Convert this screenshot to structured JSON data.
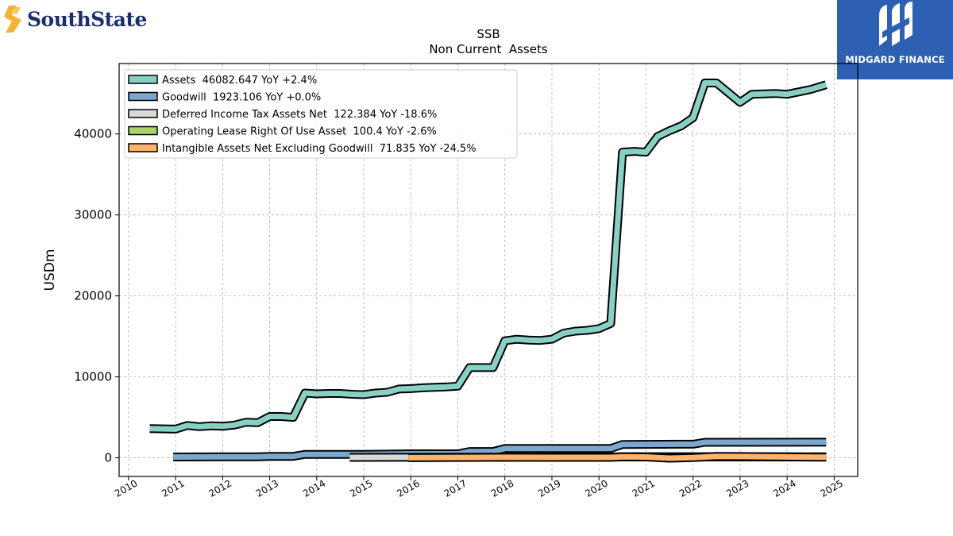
{
  "header": {
    "left_logo_text": "SouthState",
    "left_logo_icon": "southstate-s-icon",
    "right_logo_text": "MIDGARD FINANCE",
    "right_logo_icon": "midgard-m-icon"
  },
  "colors": {
    "assets": "#88d0c4",
    "goodwill": "#7ba7cf",
    "deferred": "#d9d9d9",
    "lease": "#a9d46a",
    "intangible": "#fcb36b",
    "left_logo_accent": "#f5b335",
    "left_logo_text": "#1b2f6b",
    "right_logo_bg": "#2d5fb2"
  },
  "chart_data": {
    "type": "line",
    "title": "SSB",
    "subtitle": "Non Current  Assets",
    "ylabel": "USDm",
    "xlabel": "",
    "xlim": [
      2009.8,
      2025.5
    ],
    "ylim": [
      -2300,
      48700
    ],
    "x_ticks": [
      2010,
      2011,
      2012,
      2013,
      2014,
      2015,
      2016,
      2017,
      2018,
      2019,
      2020,
      2021,
      2022,
      2023,
      2024,
      2025
    ],
    "y_ticks": [
      0,
      10000,
      20000,
      30000,
      40000
    ],
    "grid": true,
    "legend_position": "top-left",
    "series": [
      {
        "name": "Assets",
        "legend": "Assets  46082.647 YoY +2.4%",
        "color_key": "assets",
        "points": [
          [
            2010.45,
            3600
          ],
          [
            2011.0,
            3550
          ],
          [
            2011.25,
            4000
          ],
          [
            2011.5,
            3850
          ],
          [
            2011.75,
            3950
          ],
          [
            2012.0,
            3900
          ],
          [
            2012.25,
            4050
          ],
          [
            2012.5,
            4400
          ],
          [
            2012.75,
            4350
          ],
          [
            2013.0,
            5100
          ],
          [
            2013.25,
            5100
          ],
          [
            2013.5,
            5000
          ],
          [
            2013.75,
            8000
          ],
          [
            2014.0,
            7900
          ],
          [
            2014.25,
            7950
          ],
          [
            2014.5,
            7950
          ],
          [
            2014.75,
            7850
          ],
          [
            2015.0,
            7800
          ],
          [
            2015.25,
            8000
          ],
          [
            2015.5,
            8100
          ],
          [
            2015.75,
            8500
          ],
          [
            2016.0,
            8550
          ],
          [
            2016.25,
            8650
          ],
          [
            2016.5,
            8700
          ],
          [
            2016.75,
            8750
          ],
          [
            2017.0,
            8850
          ],
          [
            2017.25,
            11150
          ],
          [
            2017.5,
            11150
          ],
          [
            2017.75,
            11150
          ],
          [
            2018.0,
            14450
          ],
          [
            2018.25,
            14650
          ],
          [
            2018.5,
            14550
          ],
          [
            2018.75,
            14500
          ],
          [
            2019.0,
            14650
          ],
          [
            2019.25,
            15400
          ],
          [
            2019.5,
            15650
          ],
          [
            2019.75,
            15750
          ],
          [
            2020.0,
            15950
          ],
          [
            2020.25,
            16600
          ],
          [
            2020.5,
            37750
          ],
          [
            2020.75,
            37850
          ],
          [
            2021.0,
            37750
          ],
          [
            2021.25,
            39700
          ],
          [
            2021.5,
            40400
          ],
          [
            2021.75,
            41000
          ],
          [
            2022.0,
            42000
          ],
          [
            2022.25,
            46300
          ],
          [
            2022.5,
            46300
          ],
          [
            2022.75,
            45100
          ],
          [
            2023.0,
            43900
          ],
          [
            2023.25,
            44900
          ],
          [
            2023.5,
            44950
          ],
          [
            2023.75,
            45000
          ],
          [
            2024.0,
            44900
          ],
          [
            2024.25,
            45200
          ],
          [
            2024.5,
            45500
          ],
          [
            2024.83,
            46083
          ]
        ]
      },
      {
        "name": "Goodwill",
        "legend": "Goodwill  1923.106 YoY +0.0%",
        "color_key": "goodwill",
        "points": [
          [
            2010.95,
            100
          ],
          [
            2012.0,
            120
          ],
          [
            2012.75,
            130
          ],
          [
            2013.0,
            180
          ],
          [
            2013.5,
            180
          ],
          [
            2013.75,
            430
          ],
          [
            2014.5,
            430
          ],
          [
            2015.0,
            430
          ],
          [
            2016.0,
            500
          ],
          [
            2017.0,
            500
          ],
          [
            2017.25,
            780
          ],
          [
            2017.75,
            780
          ],
          [
            2018.0,
            1150
          ],
          [
            2019.0,
            1150
          ],
          [
            2020.25,
            1150
          ],
          [
            2020.5,
            1650
          ],
          [
            2021.75,
            1680
          ],
          [
            2022.0,
            1680
          ],
          [
            2022.25,
            1920
          ],
          [
            2024.83,
            1923
          ]
        ]
      },
      {
        "name": "Deferred Income Tax Assets Net",
        "legend": "Deferred Income Tax Assets Net  122.384 YoY -18.6%",
        "color_key": "deferred",
        "points": [
          [
            2014.7,
            50
          ],
          [
            2016.0,
            60
          ],
          [
            2017.0,
            70
          ],
          [
            2018.0,
            80
          ],
          [
            2020.25,
            90
          ],
          [
            2020.5,
            140
          ],
          [
            2022.0,
            140
          ],
          [
            2024.83,
            122
          ]
        ]
      },
      {
        "name": "Operating Lease Right Of Use Asset",
        "legend": "Operating Lease Right Of Use Asset  100.4 YoY -2.6%",
        "color_key": "lease",
        "points": [
          [
            2019.0,
            100
          ],
          [
            2020.0,
            100
          ],
          [
            2021.0,
            100
          ],
          [
            2022.0,
            100
          ],
          [
            2023.0,
            100
          ],
          [
            2024.83,
            100
          ]
        ]
      },
      {
        "name": "Intangible Assets Net Excluding Goodwill",
        "legend": "Intangible Assets Net Excluding Goodwill  71.835 YoY -24.5%",
        "color_key": "intangible",
        "points": [
          [
            2015.95,
            10
          ],
          [
            2016.5,
            30
          ],
          [
            2017.0,
            40
          ],
          [
            2018.0,
            60
          ],
          [
            2019.0,
            50
          ],
          [
            2020.25,
            50
          ],
          [
            2020.5,
            120
          ],
          [
            2021.0,
            100
          ],
          [
            2021.5,
            -40
          ],
          [
            2022.0,
            30
          ],
          [
            2022.5,
            170
          ],
          [
            2023.0,
            160
          ],
          [
            2024.0,
            110
          ],
          [
            2024.83,
            72
          ]
        ]
      }
    ]
  }
}
